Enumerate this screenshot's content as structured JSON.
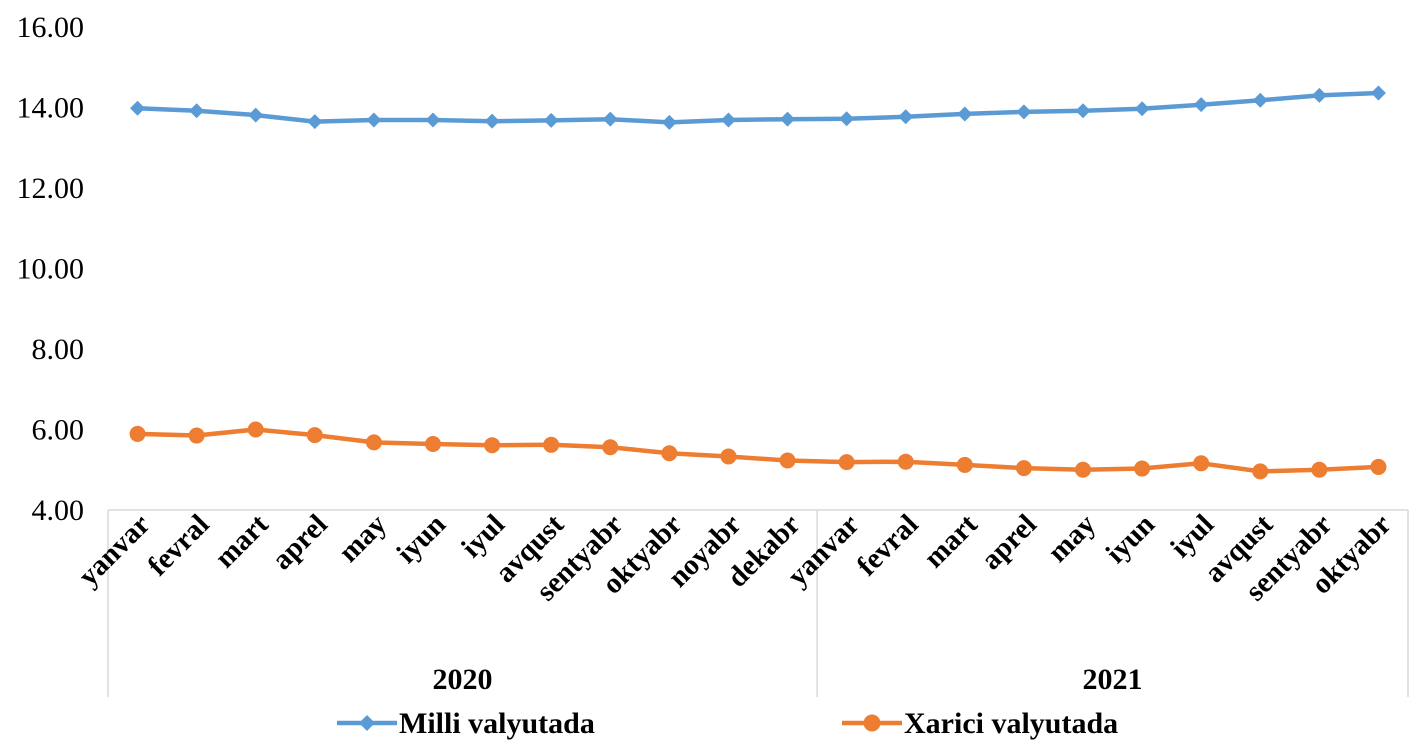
{
  "chart_data": {
    "type": "line",
    "title": "",
    "xlabel": "",
    "ylabel": "",
    "ylim": [
      4,
      16
    ],
    "yticks": [
      "4.00",
      "6.00",
      "8.00",
      "10.00",
      "12.00",
      "14.00",
      "16.00"
    ],
    "grid": false,
    "legend_position": "bottom",
    "groups": [
      {
        "label": "2020",
        "months": [
          "yanvar",
          "fevral",
          "mart",
          "aprel",
          "may",
          "iyun",
          "iyul",
          "avqust",
          "sentyabr",
          "oktyabr",
          "noyabr",
          "dekabr"
        ]
      },
      {
        "label": "2021",
        "months": [
          "yanvar",
          "fevral",
          "mart",
          "aprel",
          "may",
          "iyun",
          "iyul",
          "avqust",
          "sentyabr",
          "oktyabr"
        ]
      }
    ],
    "categories": [
      "yanvar",
      "fevral",
      "mart",
      "aprel",
      "may",
      "iyun",
      "iyul",
      "avqust",
      "sentyabr",
      "oktyabr",
      "noyabr",
      "dekabr",
      "yanvar",
      "fevral",
      "mart",
      "aprel",
      "may",
      "iyun",
      "iyul",
      "avqust",
      "sentyabr",
      "oktyabr"
    ],
    "series": [
      {
        "name": "Milli valyutada",
        "color": "#5B9BD5",
        "marker": "diamond",
        "values": [
          13.98,
          13.92,
          13.81,
          13.65,
          13.69,
          13.69,
          13.66,
          13.68,
          13.71,
          13.63,
          13.69,
          13.71,
          13.72,
          13.77,
          13.84,
          13.89,
          13.92,
          13.97,
          14.07,
          14.18,
          14.3,
          14.36
        ]
      },
      {
        "name": "Xarici valyutada",
        "color": "#ED7D31",
        "marker": "circle",
        "values": [
          5.89,
          5.85,
          6.0,
          5.86,
          5.68,
          5.64,
          5.61,
          5.62,
          5.56,
          5.41,
          5.33,
          5.23,
          5.19,
          5.2,
          5.12,
          5.04,
          5.0,
          5.03,
          5.16,
          4.96,
          5.0,
          5.07
        ]
      }
    ]
  }
}
